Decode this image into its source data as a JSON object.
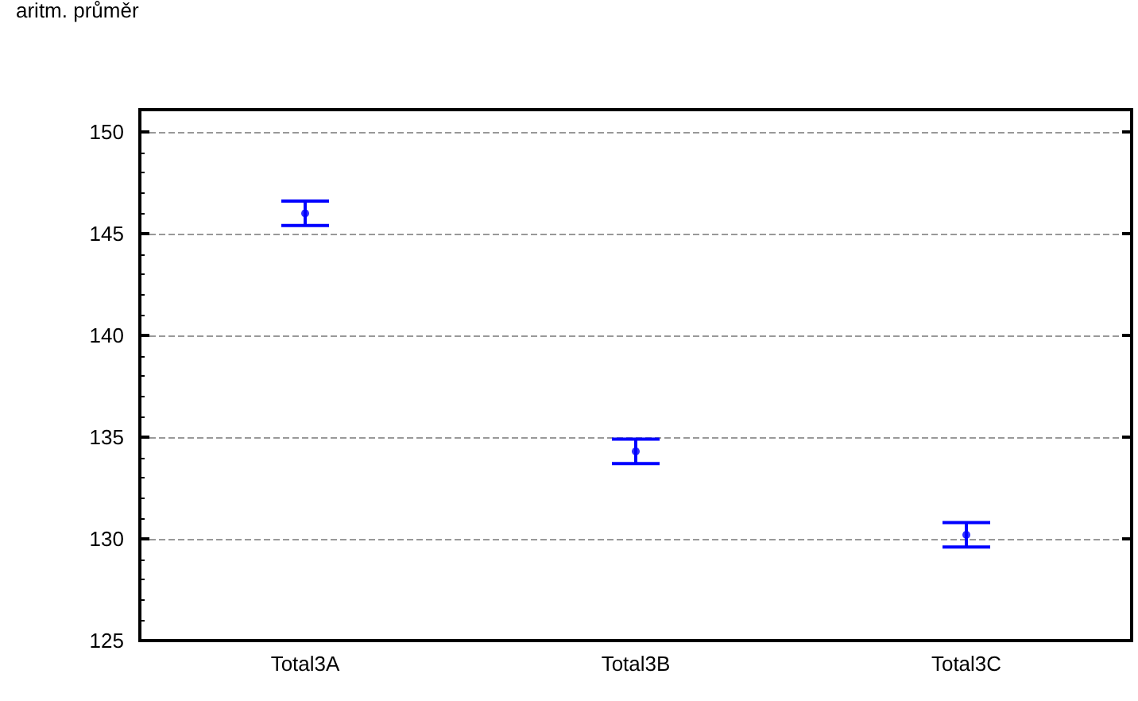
{
  "chart_data": {
    "type": "scatter",
    "ylabel": "aritm. průměr",
    "categories": [
      "Total3A",
      "Total3B",
      "Total3C"
    ],
    "series": [
      {
        "color": "#0000ff",
        "values": [
          146.0,
          134.3,
          130.2
        ],
        "errors": [
          0.6,
          0.6,
          0.6
        ]
      }
    ],
    "ylim": [
      125,
      150
    ],
    "yticks": [
      125,
      130,
      135,
      140,
      145,
      150
    ],
    "grid": "y",
    "marker": "circle"
  }
}
